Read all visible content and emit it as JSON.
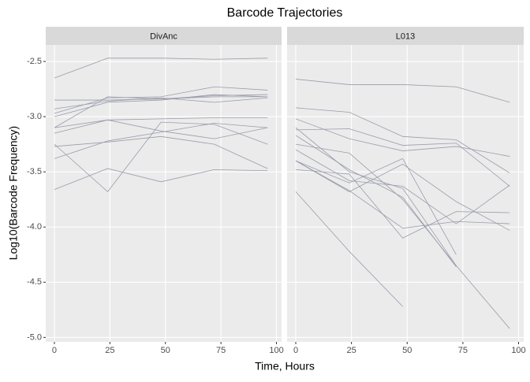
{
  "chart_data": {
    "type": "line",
    "title": "Barcode Trajectories",
    "x_label": "Time, Hours",
    "y_label": "Log10(Barcode Frequency)",
    "x": [
      0,
      24,
      48,
      72,
      96
    ],
    "xlim": [
      -3.9,
      102.3
    ],
    "xticks": [
      0,
      25,
      50,
      75,
      100
    ],
    "ylim": [
      -5.04,
      -2.35
    ],
    "yticks": [
      -2.5,
      {
        "value": -3,
        "label": "-3.0"
      },
      -3.5,
      {
        "value": -4,
        "label": "-4.0"
      },
      -4.5,
      {
        "value": -5,
        "label": "-5.0"
      }
    ],
    "grid": true,
    "color": "#9a9cab",
    "facets": [
      {
        "name": "DivAnc",
        "series": [
          {
            "values": [
              -2.65,
              -2.47,
              -2.47,
              -2.48,
              -2.47
            ]
          },
          {
            "values": [
              -2.85,
              -2.85,
              -2.84,
              -2.81,
              -2.8
            ]
          },
          {
            "values": [
              -2.97,
              -2.83,
              -2.82,
              -2.73,
              -2.76
            ]
          },
          {
            "values": [
              -3.0,
              -2.87,
              -2.85,
              -2.8,
              -2.82
            ]
          },
          {
            "values": [
              -2.93,
              -2.86,
              -2.83,
              -2.87,
              -2.83
            ]
          },
          {
            "values": [
              -3.1,
              -2.82,
              -2.84,
              -2.82,
              -2.82
            ]
          },
          {
            "values": [
              -3.1,
              -3.03,
              -3.02,
              -3.01,
              -3.01
            ]
          },
          {
            "values": [
              -3.15,
              -3.03,
              -3.13,
              -3.2,
              -3.1
            ]
          },
          {
            "values": [
              -3.27,
              -3.23,
              -3.18,
              -3.25,
              -3.47
            ]
          },
          {
            "values": [
              -3.25,
              -3.68,
              -3.05,
              -3.07,
              -3.25
            ]
          },
          {
            "values": [
              -3.38,
              -3.22,
              -3.14,
              -3.06,
              -3.1
            ]
          },
          {
            "values": [
              -3.66,
              -3.47,
              -3.59,
              -3.48,
              -3.49
            ]
          }
        ]
      },
      {
        "name": "L013",
        "series": [
          {
            "values": [
              -2.66,
              -2.71,
              -2.71,
              -2.73,
              -2.87
            ]
          },
          {
            "values": [
              -2.92,
              -2.96,
              -3.18,
              -3.21,
              -3.51
            ]
          },
          {
            "values": [
              -3.02,
              -3.2,
              -3.31,
              -3.27,
              -3.36
            ]
          },
          {
            "values": [
              -3.12,
              -3.11,
              -3.26,
              -3.24,
              -3.63
            ]
          },
          {
            "values": [
              -3.17,
              -3.48,
              -3.73,
              -4.36,
              null
            ]
          },
          {
            "values": [
              -3.25,
              -3.33,
              -3.75,
              -4.35,
              null
            ]
          },
          {
            "values": [
              -3.4,
              -3.68,
              -3.43,
              -3.77,
              -4.03
            ]
          },
          {
            "values": [
              -3.4,
              -3.6,
              -3.38,
              -4.25,
              null
            ]
          },
          {
            "values": [
              -3.48,
              -3.52,
              -4.1,
              -3.86,
              -3.87
            ]
          },
          {
            "values": [
              -3.68,
              -4.22,
              -4.72,
              null,
              null
            ]
          },
          {
            "values": [
              -3.1,
              -3.5,
              -3.65,
              -4.35,
              -4.92
            ]
          },
          {
            "values": [
              -3.4,
              -3.67,
              -4.01,
              -3.95,
              -3.97
            ]
          },
          {
            "values": [
              -3.3,
              -3.58,
              -3.63,
              -3.97,
              -3.62
            ]
          }
        ]
      }
    ]
  }
}
